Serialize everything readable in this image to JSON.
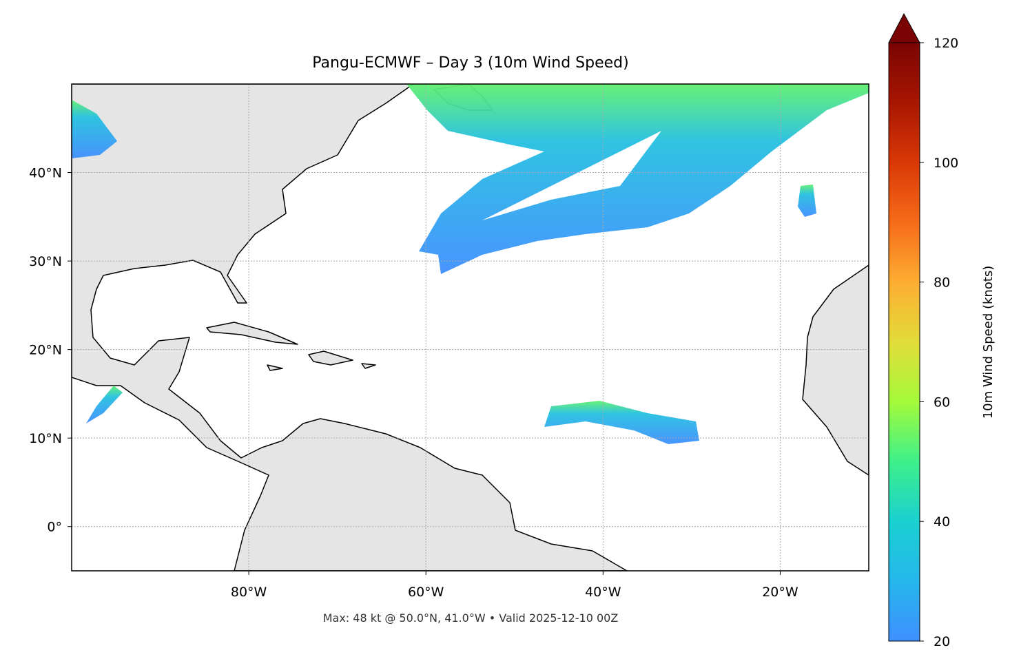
{
  "chart_data": {
    "type": "map",
    "title": "Pangu-ECMWF – Day 3 (10m Wind Speed)",
    "footnote": "Max: 48 kt @ 50.0°N, 41.0°W • Valid 2025-12-10 00Z",
    "xlim": [
      -100,
      -10
    ],
    "ylim": [
      -5,
      50
    ],
    "xticks": [
      {
        "value": -80,
        "label": "80°W"
      },
      {
        "value": -60,
        "label": "60°W"
      },
      {
        "value": -40,
        "label": "40°W"
      },
      {
        "value": -20,
        "label": "20°W"
      }
    ],
    "yticks": [
      {
        "value": 0,
        "label": "0°"
      },
      {
        "value": 10,
        "label": "10°N"
      },
      {
        "value": 20,
        "label": "20°N"
      },
      {
        "value": 30,
        "label": "30°N"
      },
      {
        "value": 40,
        "label": "40°N"
      }
    ],
    "grid": true,
    "colorbar": {
      "label": "10m Wind Speed (knots)",
      "lim": [
        20,
        120
      ],
      "ticks": [
        20,
        40,
        60,
        80,
        100,
        120
      ]
    }
  }
}
